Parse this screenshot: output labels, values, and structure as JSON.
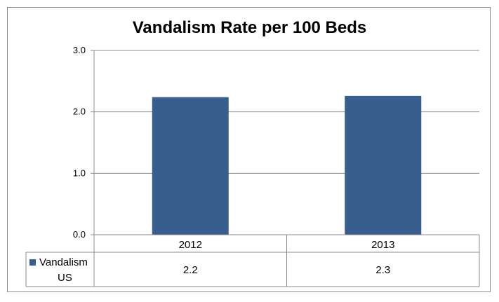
{
  "chart_data": {
    "type": "bar",
    "title": "Vandalism Rate per 100 Beds",
    "categories": [
      "2012",
      "2013"
    ],
    "series": [
      {
        "name": "Vandalism US",
        "values": [
          2.24,
          2.26
        ],
        "table_values": [
          "2.2",
          "2.3"
        ],
        "color": "#385e8e"
      }
    ],
    "ylim": [
      0,
      3
    ],
    "yticks": [
      "0.0",
      "1.0",
      "2.0",
      "3.0"
    ],
    "grid": true,
    "legend": "data-table"
  },
  "legend_label_line1": "Vandalism",
  "legend_label_line2": "US"
}
